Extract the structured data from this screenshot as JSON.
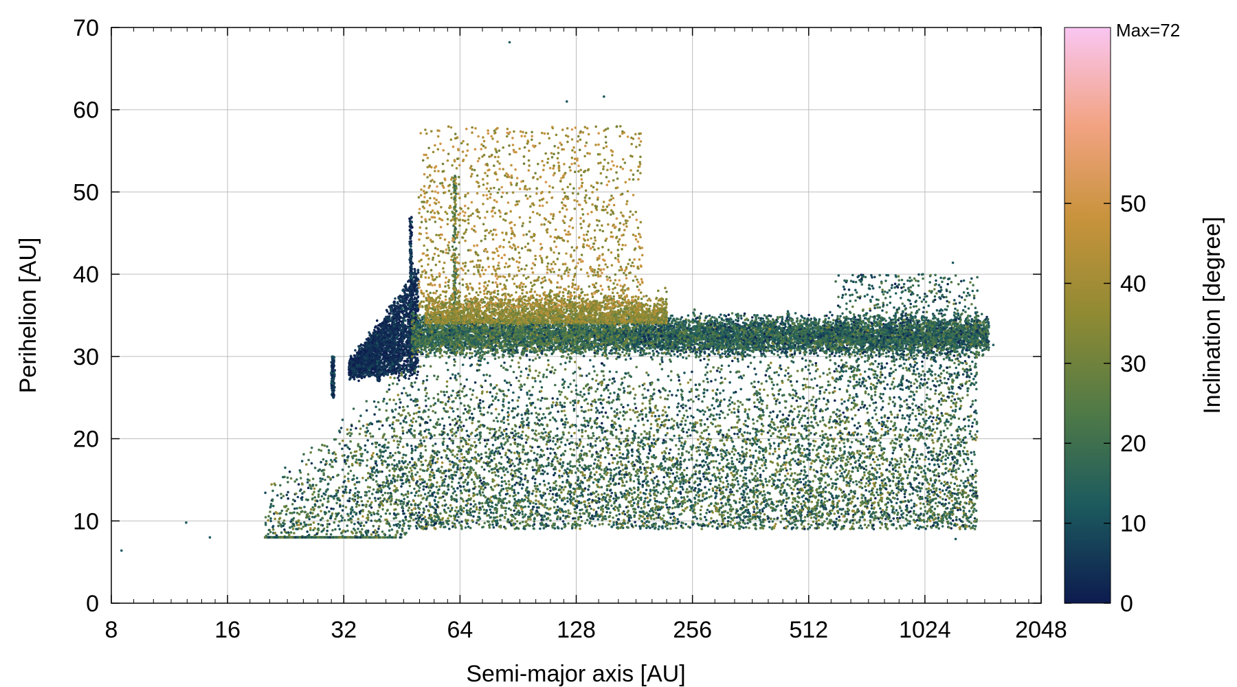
{
  "chart_data": {
    "type": "scatter",
    "xlabel": "Semi-major axis [AU]",
    "ylabel": "Perihelion [AU]",
    "x_scale": "log2",
    "xlim": [
      8,
      2048
    ],
    "ylim": [
      0,
      70
    ],
    "x_ticks": [
      8,
      16,
      32,
      64,
      128,
      256,
      512,
      1024,
      2048
    ],
    "x_tick_labels": [
      "8",
      "16",
      "32",
      "64",
      "128",
      "256",
      "512",
      "1024",
      "2048"
    ],
    "y_ticks": [
      0,
      10,
      20,
      30,
      40,
      50,
      60,
      70
    ],
    "y_tick_labels": [
      "0",
      "10",
      "20",
      "30",
      "40",
      "50",
      "60",
      "70"
    ],
    "grid": true,
    "colorbar": {
      "label": "Inclination [degree]",
      "range": [
        0,
        72
      ],
      "ticks": [
        0,
        10,
        20,
        30,
        40,
        50
      ],
      "tick_labels": [
        "0",
        "10",
        "20",
        "30",
        "40",
        "50"
      ],
      "max_label": "Max=72",
      "colors": [
        "#0d1b4f",
        "#1c5a5e",
        "#4f7a47",
        "#8f8a33",
        "#c8933c",
        "#f2a382",
        "#f9c6f2"
      ]
    },
    "point_color_variable": "Inclination [degree]",
    "features": [
      {
        "x": [
          30,
          50
        ],
        "y": [
          29,
          47
        ],
        "inclination": [
          0,
          15
        ],
        "note": "dense low-inclination wedge"
      },
      {
        "x": [
          50,
          1400
        ],
        "y": [
          30,
          35
        ],
        "inclination": [
          0,
          35
        ],
        "note": "main scattered band near q~30-35"
      },
      {
        "x": [
          48,
          180
        ],
        "y": [
          35,
          62
        ],
        "inclination": [
          25,
          50
        ],
        "note": "high-perihelion high-inclination tail"
      },
      {
        "x": [
          20,
          1400
        ],
        "y": [
          8,
          30
        ],
        "inclination": [
          0,
          40
        ],
        "note": "sparse low-perihelion cloud"
      }
    ],
    "notable_points": [
      {
        "x": 8.5,
        "y": 6.4
      },
      {
        "x": 12.5,
        "y": 9.8
      },
      {
        "x": 14.4,
        "y": 8.0
      },
      {
        "x": 86,
        "y": 68.2
      },
      {
        "x": 121,
        "y": 61.0
      },
      {
        "x": 151,
        "y": 61.6
      },
      {
        "x": 1210,
        "y": 41.4
      },
      {
        "x": 1540,
        "y": 31.4
      },
      {
        "x": 1230,
        "y": 7.8
      }
    ]
  }
}
